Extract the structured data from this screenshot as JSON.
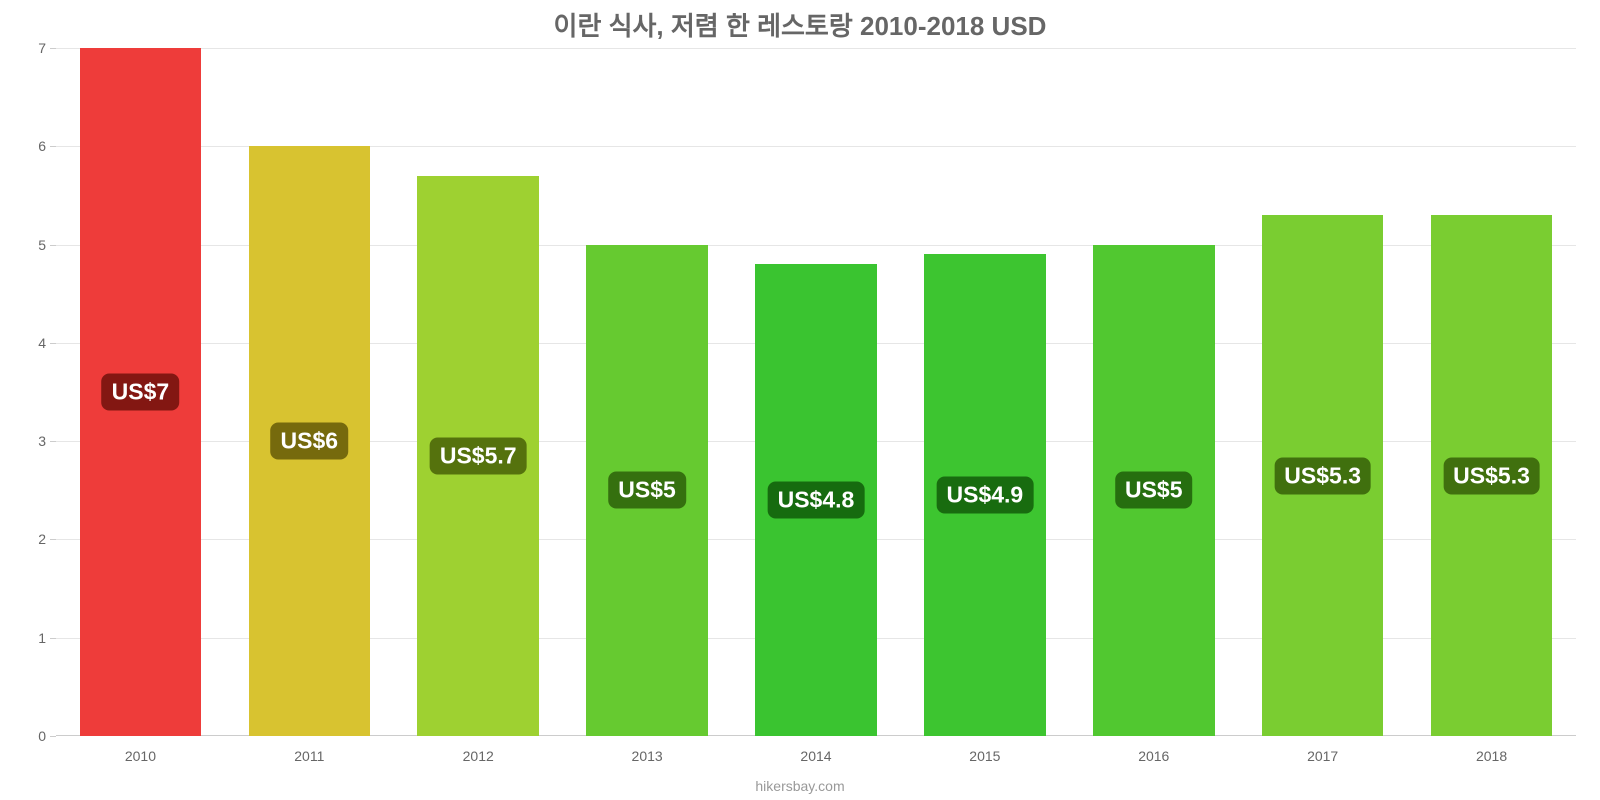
{
  "chart": {
    "type": "bar",
    "title": "이란 식사, 저렴 한 레스토랑 2010-2018 USD",
    "title_fontsize": 26,
    "title_color": "#666666",
    "credit": "hikersbay.com",
    "credit_fontsize": 14,
    "credit_color": "#999999",
    "background_color": "#ffffff",
    "grid_color": "#e6e6e6",
    "axis_color": "#cccccc",
    "tick_label_color": "#666666",
    "tick_label_fontsize": 14,
    "x_tick_fontsize": 14,
    "ylim": [
      0,
      7
    ],
    "ytick_step": 1,
    "yticks": [
      0,
      1,
      2,
      3,
      4,
      5,
      6,
      7
    ],
    "bar_width_ratio": 0.72,
    "value_label_fontsize": 23,
    "value_label_color": "#ffffff",
    "value_label_radius": 8,
    "categories": [
      "2010",
      "2011",
      "2012",
      "2013",
      "2014",
      "2015",
      "2016",
      "2017",
      "2018"
    ],
    "values": [
      7.0,
      6.0,
      5.7,
      5.0,
      4.8,
      4.9,
      5.0,
      5.3,
      5.3
    ],
    "value_labels": [
      "US$7",
      "US$6",
      "US$5.7",
      "US$5",
      "US$4.8",
      "US$4.9",
      "US$5",
      "US$5.3",
      "US$5.3"
    ],
    "bar_colors": [
      "#ee3c3a",
      "#d8c330",
      "#9ed131",
      "#66ca30",
      "#3ac430",
      "#3dc530",
      "#51c830",
      "#7acd31",
      "#7acd31"
    ],
    "label_bg_colors": [
      "#831712",
      "#766a0d",
      "#55720d",
      "#35700f",
      "#166b0f",
      "#186c0f",
      "#266e0f",
      "#40700e",
      "#40700e"
    ]
  }
}
